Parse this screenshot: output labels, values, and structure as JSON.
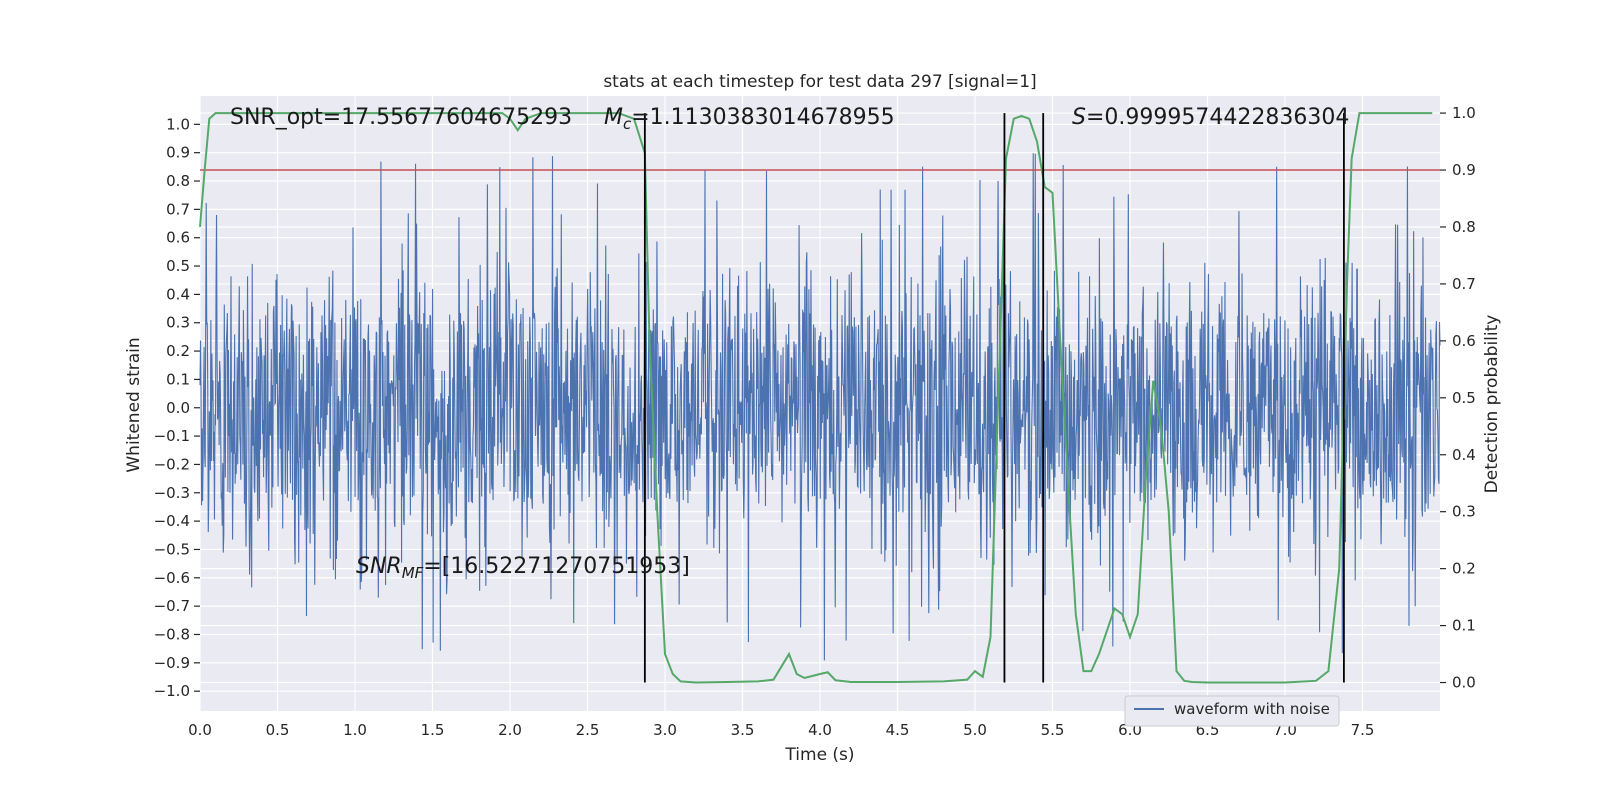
{
  "chart_data": {
    "type": "line",
    "title": "stats at each timestep for test data 297 [signal=1]",
    "xlabel": "Time (s)",
    "ylabel_left": "Whitened strain",
    "ylabel_right": "Detection probability",
    "xlim": [
      0.0,
      8.0
    ],
    "ylim_left": [
      -1.07,
      1.1
    ],
    "ylim_right": [
      -0.05,
      1.03
    ],
    "x_ticks": [
      0.0,
      0.5,
      1.0,
      1.5,
      2.0,
      2.5,
      3.0,
      3.5,
      4.0,
      4.5,
      5.0,
      5.5,
      6.0,
      6.5,
      7.0,
      7.5
    ],
    "x_tick_labels": [
      "0.0",
      "0.5",
      "1.0",
      "1.5",
      "2.0",
      "2.5",
      "3.0",
      "3.5",
      "4.0",
      "4.5",
      "5.0",
      "5.5",
      "6.0",
      "6.5",
      "7.0",
      "7.5"
    ],
    "y_left_ticks": [
      1.0,
      0.9,
      0.8,
      0.7,
      0.6,
      0.5,
      0.4,
      0.3,
      0.2,
      0.1,
      0.0,
      -0.1,
      -0.2,
      -0.3,
      -0.4,
      -0.5,
      -0.6,
      -0.7,
      -0.8,
      -0.9,
      -1.0
    ],
    "y_left_tick_labels": [
      "1.0",
      "0.9",
      "0.8",
      "0.7",
      "0.6",
      "0.5",
      "0.4",
      "0.3",
      "0.2",
      "0.1",
      "0.0",
      "−0.1",
      "−0.2",
      "−0.3",
      "−0.4",
      "−0.5",
      "−0.6",
      "−0.7",
      "−0.8",
      "−0.9",
      "−1.0"
    ],
    "y_right_ticks": [
      1.0,
      0.9,
      0.8,
      0.7,
      0.6,
      0.5,
      0.4,
      0.3,
      0.2,
      0.1,
      0.0
    ],
    "y_right_tick_labels": [
      "1.0",
      "0.9",
      "0.8",
      "0.7",
      "0.6",
      "0.5",
      "0.4",
      "0.3",
      "0.2",
      "0.1",
      "0.0"
    ],
    "threshold": {
      "axis": "right",
      "value": 0.9,
      "color": "#c44e52"
    },
    "vertical_markers": [
      2.87,
      5.19,
      5.44,
      7.38
    ],
    "waveform": {
      "name": "waveform with noise",
      "color": "#4c72b0",
      "duration": 8.0,
      "samples": 2400,
      "core_amplitude": 0.34,
      "peak_amplitude": 0.99,
      "min_value": -0.98
    },
    "probability": {
      "color": "#55a868",
      "x": [
        0.0,
        0.03,
        0.06,
        0.1,
        0.2,
        0.5,
        1.0,
        1.5,
        1.95,
        2.0,
        2.05,
        2.1,
        2.2,
        2.3,
        2.5,
        2.7,
        2.8,
        2.87,
        2.9,
        2.95,
        3.0,
        3.05,
        3.1,
        3.2,
        3.4,
        3.6,
        3.7,
        3.8,
        3.85,
        3.9,
        4.0,
        4.05,
        4.1,
        4.2,
        4.5,
        4.8,
        4.95,
        5.0,
        5.05,
        5.1,
        5.15,
        5.2,
        5.25,
        5.3,
        5.35,
        5.4,
        5.45,
        5.5,
        5.55,
        5.6,
        5.65,
        5.7,
        5.75,
        5.8,
        5.9,
        5.95,
        6.0,
        6.05,
        6.1,
        6.15,
        6.2,
        6.25,
        6.3,
        6.35,
        6.4,
        6.5,
        7.0,
        7.2,
        7.28,
        7.35,
        7.4,
        7.43,
        7.48,
        7.55,
        7.6,
        7.7,
        7.95
      ],
      "y": [
        0.8,
        0.9,
        0.99,
        1.0,
        1.0,
        1.0,
        1.0,
        1.0,
        1.0,
        0.99,
        0.97,
        0.99,
        1.0,
        1.0,
        1.0,
        1.0,
        0.99,
        0.93,
        0.6,
        0.3,
        0.05,
        0.015,
        0.002,
        0.0,
        0.001,
        0.002,
        0.005,
        0.05,
        0.015,
        0.008,
        0.015,
        0.018,
        0.004,
        0.001,
        0.001,
        0.002,
        0.005,
        0.02,
        0.01,
        0.08,
        0.5,
        0.92,
        0.99,
        0.995,
        0.99,
        0.95,
        0.87,
        0.86,
        0.6,
        0.35,
        0.12,
        0.02,
        0.02,
        0.05,
        0.13,
        0.12,
        0.08,
        0.12,
        0.35,
        0.53,
        0.45,
        0.3,
        0.02,
        0.003,
        0.001,
        0.0,
        0.0,
        0.003,
        0.02,
        0.2,
        0.7,
        0.92,
        1.0,
        1.0,
        1.0,
        1.0,
        1.0
      ]
    },
    "legend": {
      "position": "lower-right",
      "entries": [
        "waveform with noise"
      ]
    },
    "annotations": {
      "snr_opt": "SNR_opt=17.55677604675293",
      "mc_symbol": "M",
      "mc_sub": "c",
      "mc_value": "=1.1130383014678955",
      "s_symbol": "S",
      "s_value": "=0.9999574422836304",
      "snr_mf_symbol": "SNR",
      "snr_mf_sub": "MF",
      "snr_mf_value": "=[16.52271270751953]"
    },
    "grid": true
  }
}
